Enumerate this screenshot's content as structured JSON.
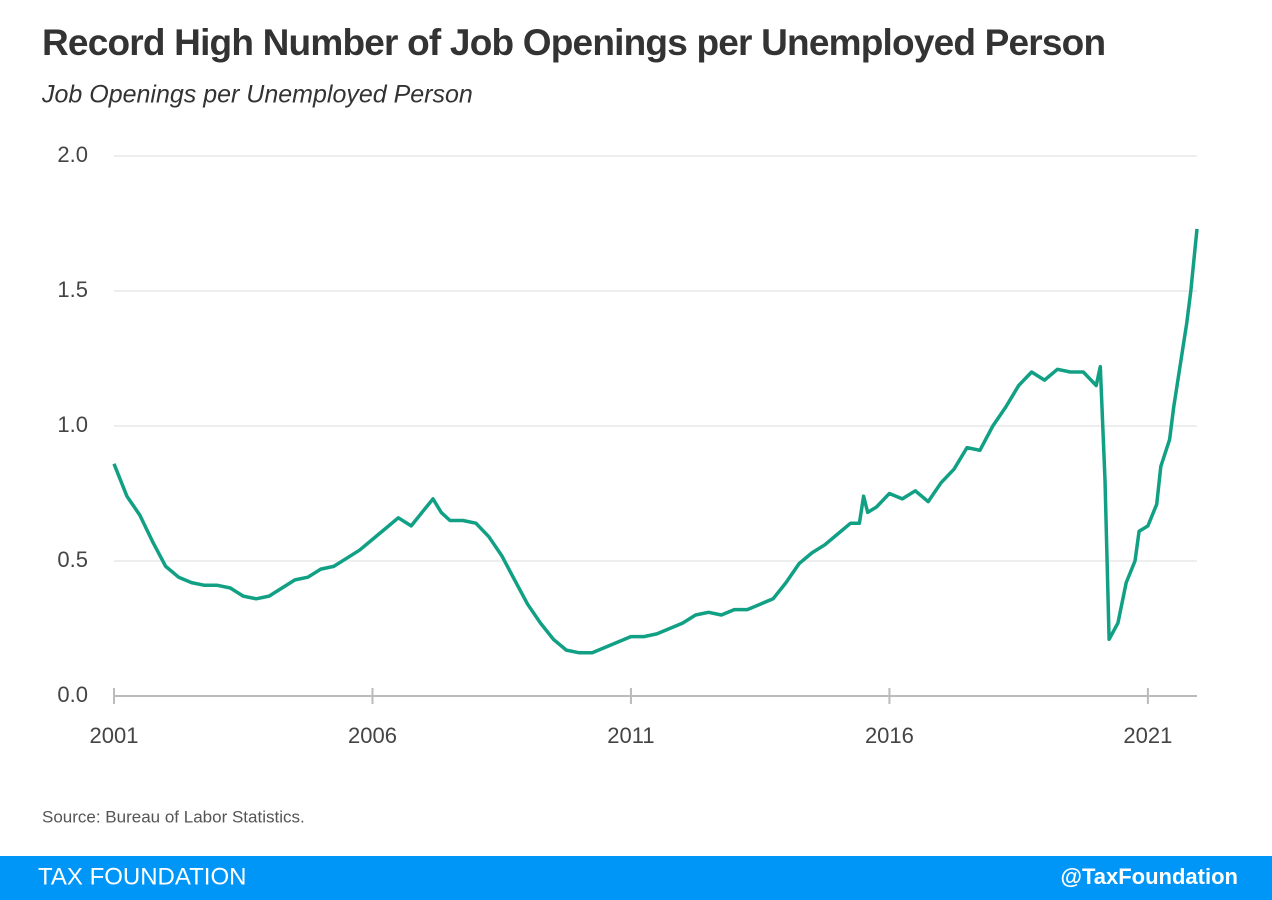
{
  "chart_data": {
    "type": "line",
    "title": "Record High Number of Job Openings per Unemployed Person",
    "subtitle": "Job Openings per Unemployed Person",
    "x": [
      2001,
      2001.25,
      2001.5,
      2001.75,
      2002,
      2002.25,
      2002.5,
      2002.75,
      2003,
      2003.25,
      2003.5,
      2003.75,
      2004,
      2004.25,
      2004.5,
      2004.75,
      2005,
      2005.25,
      2005.5,
      2005.75,
      2006,
      2006.25,
      2006.5,
      2006.75,
      2007,
      2007.17,
      2007.33,
      2007.5,
      2007.75,
      2008,
      2008.25,
      2008.5,
      2008.75,
      2009,
      2009.25,
      2009.5,
      2009.75,
      2010,
      2010.25,
      2010.5,
      2010.75,
      2011,
      2011.25,
      2011.5,
      2011.75,
      2012,
      2012.25,
      2012.5,
      2012.75,
      2013,
      2013.25,
      2013.5,
      2013.75,
      2014,
      2014.25,
      2014.5,
      2014.75,
      2015,
      2015.25,
      2015.42,
      2015.5,
      2015.58,
      2015.75,
      2016,
      2016.25,
      2016.5,
      2016.75,
      2017,
      2017.25,
      2017.5,
      2017.75,
      2018,
      2018.25,
      2018.5,
      2018.75,
      2019,
      2019.25,
      2019.5,
      2019.75,
      2020,
      2020.08,
      2020.17,
      2020.25,
      2020.42,
      2020.58,
      2020.75,
      2020.83,
      2021,
      2021.17,
      2021.25,
      2021.42,
      2021.5,
      2021.67,
      2021.75,
      2021.83,
      2021.95
    ],
    "series": [
      {
        "name": "Job Openings per Unemployed Person",
        "color": "#12a085",
        "values": [
          0.86,
          0.74,
          0.67,
          0.57,
          0.48,
          0.44,
          0.42,
          0.41,
          0.41,
          0.4,
          0.37,
          0.36,
          0.37,
          0.4,
          0.43,
          0.44,
          0.47,
          0.48,
          0.51,
          0.54,
          0.58,
          0.62,
          0.66,
          0.63,
          0.69,
          0.73,
          0.68,
          0.65,
          0.65,
          0.64,
          0.59,
          0.52,
          0.43,
          0.34,
          0.27,
          0.21,
          0.17,
          0.16,
          0.16,
          0.18,
          0.2,
          0.22,
          0.22,
          0.23,
          0.25,
          0.27,
          0.3,
          0.31,
          0.3,
          0.32,
          0.32,
          0.34,
          0.36,
          0.42,
          0.49,
          0.53,
          0.56,
          0.6,
          0.64,
          0.64,
          0.74,
          0.68,
          0.7,
          0.75,
          0.73,
          0.76,
          0.72,
          0.79,
          0.84,
          0.92,
          0.91,
          1.0,
          1.07,
          1.15,
          1.2,
          1.17,
          1.21,
          1.2,
          1.2,
          1.15,
          1.22,
          0.8,
          0.21,
          0.27,
          0.42,
          0.5,
          0.61,
          0.63,
          0.71,
          0.85,
          0.95,
          1.07,
          1.28,
          1.38,
          1.5,
          1.73
        ]
      }
    ],
    "xlim": [
      2001,
      2021.95
    ],
    "xticks": [
      2001,
      2006,
      2011,
      2016,
      2021
    ],
    "ylim": [
      0,
      2
    ],
    "yticks": [
      {
        "value": 0,
        "label": "0.0"
      },
      {
        "value": 0.5,
        "label": "0.5"
      },
      {
        "value": 1,
        "label": "1.0"
      },
      {
        "value": 1.5,
        "label": "1.5"
      },
      {
        "value": 2,
        "label": "2.0"
      }
    ],
    "grid": true
  },
  "source": "Source: Bureau of Labor Statistics.",
  "footer": {
    "left": "TAX FOUNDATION",
    "right": "@TaxFoundation"
  }
}
